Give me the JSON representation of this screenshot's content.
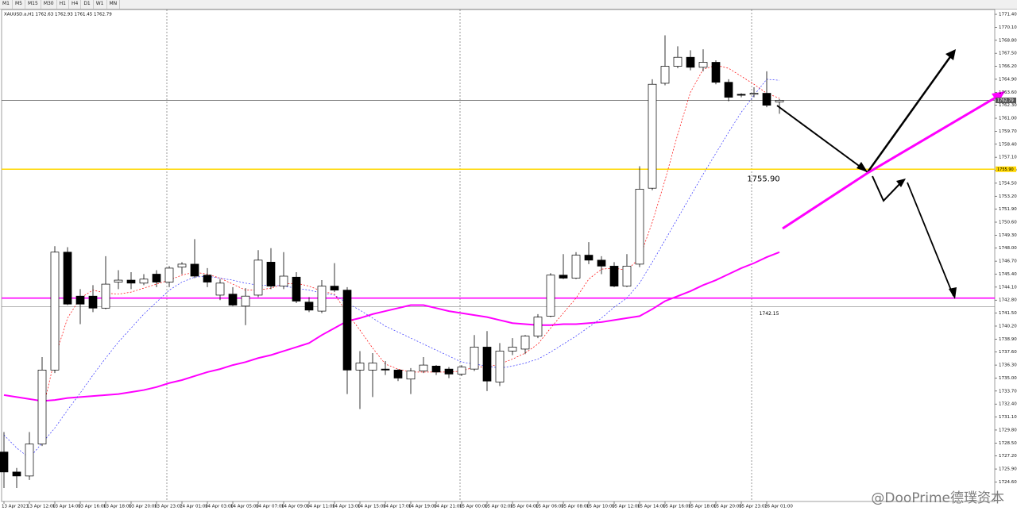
{
  "toolbar": [
    "M1",
    "M5",
    "M15",
    "M30",
    "H1",
    "H4",
    "D1",
    "W1",
    "MN"
  ],
  "watermark": "@DooPrime德璞资本",
  "chart_data": {
    "type": "candlestick",
    "title": "XAUUSD.a,H1  1762.63 1762.93 1761.45 1762.79",
    "categories": [
      "13 Apr 2021",
      null,
      "13 Apr 12:00",
      null,
      "13 Apr 14:00",
      null,
      "13 Apr 16:00",
      null,
      "13 Apr 18:00",
      null,
      "13 Apr 20:00",
      null,
      "13 Apr 23:02",
      null,
      "14 Apr 01:00",
      null,
      "14 Apr 03:00",
      null,
      "14 Apr 05:00",
      null,
      "14 Apr 07:00",
      null,
      "14 Apr 09:00",
      null,
      "14 Apr 11:00",
      null,
      "14 Apr 13:00",
      null,
      "14 Apr 15:00",
      null,
      "14 Apr 17:00",
      null,
      "14 Apr 19:00",
      null,
      "14 Apr 21:00",
      null,
      "15 Apr 00:00",
      null,
      "15 Apr 02:00",
      null,
      "15 Apr 04:00",
      null,
      "15 Apr 06:00",
      null,
      "15 Apr 08:00",
      null,
      "15 Apr 10:00",
      null,
      "15 Apr 12:00",
      null,
      "15 Apr 14:00",
      null,
      "15 Apr 16:00",
      null,
      "15 Apr 18:00",
      null,
      "15 Apr 20:00",
      null,
      "15 Apr 23:02",
      null,
      "16 Apr 01:00",
      null
    ],
    "open": [
      1727.6,
      1725.6,
      1725.2,
      1728.4,
      1735.8,
      1747.6,
      1743.2,
      1743.2,
      1742.0,
      1744.6,
      1744.8,
      1744.5,
      1745.4,
      1744.6,
      1746.1,
      1746.4,
      1745.3,
      1743.3,
      1743.4,
      1742.2,
      1743.3,
      1746.6,
      1744.2,
      1745.1,
      1742.6,
      1741.7,
      1744.2,
      1743.8,
      1735.8,
      1735.8,
      1735.9,
      1735.8,
      1734.9,
      1735.7,
      1736.2,
      1735.9,
      1735.4,
      1735.9,
      1738.1,
      1734.6,
      1737.7,
      1737.9,
      1739.2,
      1741.2,
      1745.3,
      1745.0,
      1747.3,
      1746.8,
      1746.2,
      1744.2,
      1746.4,
      1754.0,
      1764.5,
      1766.2,
      1767.1,
      1766.1,
      1766.6,
      1764.6,
      1763.4,
      1763.4,
      1763.5,
      1762.63
    ],
    "high": [
      1729.6,
      1726.0,
      1729.6,
      1737.1,
      1748.2,
      1748.1,
      1743.9,
      1744.3,
      1747.2,
      1745.8,
      1745.6,
      1745.4,
      1745.8,
      1746.2,
      1746.6,
      1748.9,
      1746.0,
      1744.9,
      1744.1,
      1744.0,
      1747.8,
      1748.0,
      1747.6,
      1745.6,
      1743.1,
      1744.8,
      1746.5,
      1744.1,
      1737.7,
      1737.5,
      1736.7,
      1735.9,
      1736.0,
      1737.1,
      1736.3,
      1736.1,
      1736.3,
      1739.3,
      1739.7,
      1738.5,
      1739.0,
      1739.3,
      1741.4,
      1745.5,
      1747.4,
      1747.6,
      1748.6,
      1747.2,
      1746.6,
      1747.4,
      1756.2,
      1764.9,
      1769.3,
      1768.2,
      1767.8,
      1767.9,
      1766.8,
      1764.9,
      1763.5,
      1764.1,
      1765.7,
      1762.93
    ],
    "low": [
      1724.0,
      1724.0,
      1724.8,
      1728.2,
      1735.5,
      1742.3,
      1740.4,
      1741.6,
      1741.9,
      1743.9,
      1743.9,
      1744.3,
      1744.1,
      1744.1,
      1745.4,
      1745.0,
      1744.1,
      1742.8,
      1742.2,
      1740.3,
      1743.1,
      1743.9,
      1743.9,
      1742.5,
      1741.6,
      1741.5,
      1743.6,
      1733.4,
      1731.9,
      1733.1,
      1735.3,
      1734.7,
      1733.4,
      1735.5,
      1735.3,
      1735.0,
      1735.2,
      1735.7,
      1733.7,
      1734.2,
      1737.3,
      1737.4,
      1739.0,
      1741.1,
      1744.9,
      1744.9,
      1746.4,
      1745.4,
      1744.1,
      1744.1,
      1746.1,
      1753.8,
      1764.3,
      1766.0,
      1765.8,
      1765.7,
      1764.4,
      1762.7,
      1763.1,
      1763.1,
      1762.1,
      1761.45
    ],
    "close": [
      1725.6,
      1725.2,
      1728.4,
      1735.8,
      1747.6,
      1742.4,
      1742.4,
      1742.0,
      1744.4,
      1744.8,
      1744.5,
      1744.9,
      1744.6,
      1746.0,
      1746.4,
      1745.2,
      1744.6,
      1744.5,
      1742.3,
      1743.2,
      1746.8,
      1744.2,
      1745.2,
      1742.7,
      1741.8,
      1744.2,
      1743.8,
      1735.8,
      1736.5,
      1736.5,
      1735.8,
      1735.0,
      1735.7,
      1736.3,
      1735.6,
      1735.4,
      1736.1,
      1738.1,
      1734.7,
      1737.7,
      1738.1,
      1739.2,
      1741.1,
      1745.3,
      1745.0,
      1747.3,
      1746.8,
      1746.2,
      1744.2,
      1746.2,
      1753.9,
      1764.4,
      1766.2,
      1767.1,
      1766.1,
      1766.6,
      1764.6,
      1763.1,
      1763.3,
      1763.5,
      1762.3,
      1762.79
    ],
    "up_color": "#ffffff",
    "down_color": "#000000",
    "series": [
      {
        "color": "#ff00ff",
        "width": 2,
        "dotted": false,
        "values": [
          1733.3,
          1733.1,
          1732.9,
          1732.7,
          1732.8,
          1733.0,
          1733.1,
          1733.2,
          1733.3,
          1733.4,
          1733.6,
          1733.8,
          1734.1,
          1734.5,
          1734.8,
          1735.2,
          1735.6,
          1735.9,
          1736.3,
          1736.6,
          1737.0,
          1737.3,
          1737.7,
          1738.1,
          1738.5,
          1739.3,
          1740.0,
          1740.7,
          1741.0,
          1741.4,
          1741.7,
          1742.0,
          1742.3,
          1742.3,
          1742.0,
          1741.7,
          1741.5,
          1741.3,
          1741.1,
          1740.8,
          1740.5,
          1740.4,
          1740.3,
          1740.3,
          1740.4,
          1740.4,
          1740.5,
          1740.6,
          1740.8,
          1741.0,
          1741.2,
          1741.9,
          1742.7,
          1743.2,
          1743.7,
          1744.3,
          1744.8,
          1745.4,
          1746.0,
          1746.5,
          1747.1,
          1747.6
        ]
      },
      {
        "color": "#ff0000",
        "width": 0.7,
        "dotted": true,
        "values": [
          null,
          null,
          null,
          1731.5,
          1737.0,
          1741.0,
          1743.0,
          1743.8,
          1743.5,
          1743.4,
          1743.6,
          1744.0,
          1744.4,
          1744.8,
          1745.3,
          1745.6,
          1745.4,
          1745.0,
          1744.4,
          1743.8,
          1743.8,
          1744.0,
          1744.4,
          1744.5,
          1744.2,
          1743.7,
          1743.4,
          1741.5,
          1739.8,
          1738.0,
          1736.4,
          1735.9,
          1735.6,
          1735.6,
          1735.6,
          1735.6,
          1735.7,
          1736.1,
          1736.1,
          1736.4,
          1736.9,
          1737.5,
          1738.4,
          1740.0,
          1741.5,
          1743.0,
          1744.9,
          1745.9,
          1746.0,
          1745.8,
          1747.0,
          1750.6,
          1754.8,
          1759.4,
          1763.6,
          1765.9,
          1766.3,
          1766.0,
          1765.2,
          1764.4,
          1763.5,
          1763.0
        ]
      },
      {
        "color": "#3333ff",
        "width": 0.7,
        "dotted": true,
        "values": [
          1729.3,
          1728.0,
          1727.0,
          1728.5,
          1730.0,
          1731.8,
          1733.5,
          1735.3,
          1737.0,
          1738.6,
          1740.0,
          1741.4,
          1742.6,
          1743.8,
          1744.6,
          1745.1,
          1745.2,
          1745.0,
          1744.8,
          1744.5,
          1744.3,
          1744.3,
          1744.2,
          1744.0,
          1743.8,
          1743.5,
          1743.3,
          1742.5,
          1741.8,
          1741.0,
          1740.2,
          1739.6,
          1739.0,
          1738.4,
          1737.8,
          1737.2,
          1736.6,
          1736.4,
          1736.2,
          1736.0,
          1736.2,
          1736.5,
          1736.9,
          1737.6,
          1738.4,
          1739.2,
          1740.1,
          1741.0,
          1742.1,
          1743.0,
          1744.5,
          1746.6,
          1748.8,
          1751.0,
          1753.2,
          1755.4,
          1757.5,
          1759.6,
          1761.6,
          1763.3,
          1764.9,
          1764.8
        ]
      }
    ],
    "levels": [
      {
        "value": 1762.79,
        "color": "#555555",
        "label": "1762.79"
      },
      {
        "value": 1755.9,
        "color": "#ffd700",
        "label": "1755.90"
      },
      {
        "value": 1743.0,
        "color": "#ff00ff"
      },
      {
        "value": 1742.15,
        "color": "#888888",
        "label": "1742.15"
      }
    ],
    "ylim": [
      1722.65,
      1771.88
    ],
    "yticks": [
      {
        "value": 1771.4,
        "label": "1771.40"
      },
      {
        "value": 1770.1,
        "label": "1770.10"
      },
      {
        "value": 1768.8,
        "label": "1768.80"
      },
      {
        "value": 1767.5,
        "label": "1767.50"
      },
      {
        "value": 1766.2,
        "label": "1766.20"
      },
      {
        "value": 1764.9,
        "label": "1764.90"
      },
      {
        "value": 1763.6,
        "label": "1763.60"
      },
      {
        "value": 1762.3,
        "label": "1762.30"
      },
      {
        "value": 1761,
        "label": "1761.00"
      },
      {
        "value": 1759.7,
        "label": "1759.70"
      },
      {
        "value": 1758.4,
        "label": "1758.40"
      },
      {
        "value": 1757.1,
        "label": "1757.10"
      },
      {
        "value": 1755.8,
        "label": "1755.80"
      },
      {
        "value": 1754.5,
        "label": "1754.50"
      },
      {
        "value": 1753.2,
        "label": "1753.20"
      },
      {
        "value": 1751.9,
        "label": "1751.90"
      },
      {
        "value": 1750.6,
        "label": "1750.60"
      },
      {
        "value": 1749.3,
        "label": "1749.30"
      },
      {
        "value": 1748,
        "label": "1748.00"
      },
      {
        "value": 1746.7,
        "label": "1746.70"
      },
      {
        "value": 1745.4,
        "label": "1745.40"
      },
      {
        "value": 1744.1,
        "label": "1744.10"
      },
      {
        "value": 1742.8,
        "label": "1742.80"
      },
      {
        "value": 1741.5,
        "label": "1741.50"
      },
      {
        "value": 1740.2,
        "label": "1740.20"
      },
      {
        "value": 1738.9,
        "label": "1738.90"
      },
      {
        "value": 1737.6,
        "label": "1737.60"
      },
      {
        "value": 1736.3,
        "label": "1736.30"
      },
      {
        "value": 1735,
        "label": "1735.00"
      },
      {
        "value": 1733.7,
        "label": "1733.70"
      },
      {
        "value": 1732.4,
        "label": "1732.40"
      },
      {
        "value": 1731.1,
        "label": "1731.10"
      },
      {
        "value": 1729.8,
        "label": "1729.80"
      },
      {
        "value": 1728.5,
        "label": "1728.50"
      },
      {
        "value": 1727.2,
        "label": "1727.20"
      },
      {
        "value": 1725.9,
        "label": "1725.90"
      },
      {
        "value": 1724.6,
        "label": "1724.60"
      }
    ],
    "grid": false
  }
}
